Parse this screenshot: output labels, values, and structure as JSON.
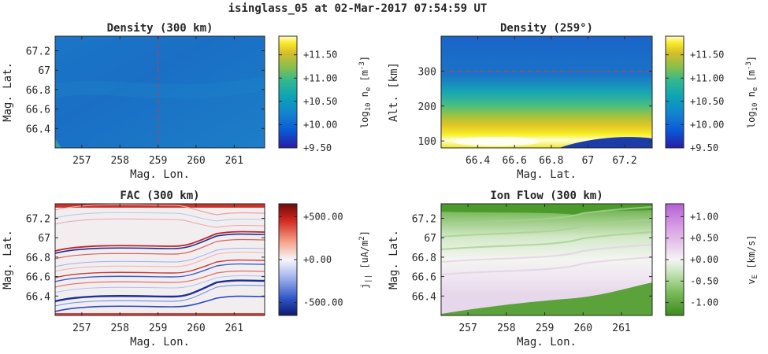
{
  "figure_title": "isinglass_05 at 02-Mar-2017 07:54:59 UT",
  "chart_data": [
    {
      "type": "heatmap",
      "title": "Density (300 km)",
      "xlabel": "Mag. Lon.",
      "ylabel": "Mag. Lat.",
      "xticks": [
        "257",
        "258",
        "259",
        "260",
        "261"
      ],
      "yticks": [
        "66.4",
        "66.6",
        "66.8",
        "67",
        "67.2"
      ],
      "xlim": [
        256.3,
        261.8
      ],
      "ylim": [
        66.2,
        67.35
      ],
      "cut_line_x": 259,
      "colorbar": {
        "label_base": "log",
        "label_sub": "10",
        "label_mid": " n",
        "label_sub2": "e",
        "label_unit": " [m",
        "label_sup": "-3",
        "label_end": "]",
        "ticks": [
          "+9.50",
          "+10.00",
          "+10.50",
          "+11.00",
          "+11.50"
        ],
        "tick_values": [
          9.5,
          10.0,
          10.5,
          11.0,
          11.5
        ],
        "range": [
          9.5,
          11.9
        ],
        "colormap": "parula"
      }
    },
    {
      "type": "heatmap",
      "title": "Density (259°)",
      "xlabel": "Mag. Lat.",
      "ylabel": "Alt. [km]",
      "xticks": [
        "66.4",
        "66.6",
        "66.8",
        "67",
        "67.2"
      ],
      "yticks": [
        "100",
        "200",
        "300"
      ],
      "xlim": [
        66.2,
        67.35
      ],
      "ylim": [
        80,
        400
      ],
      "cut_line_y": 300,
      "colorbar": {
        "label_base": "log",
        "label_sub": "10",
        "label_mid": " n",
        "label_sub2": "e",
        "label_unit": " [m",
        "label_sup": "-3",
        "label_end": "]",
        "ticks": [
          "+9.50",
          "+10.00",
          "+10.50",
          "+11.00",
          "+11.50"
        ],
        "tick_values": [
          9.5,
          10.0,
          10.5,
          11.0,
          11.5
        ],
        "range": [
          9.5,
          11.9
        ],
        "colormap": "parula"
      }
    },
    {
      "type": "heatmap",
      "title": "FAC (300 km)",
      "xlabel": "Mag. Lon.",
      "ylabel": "Mag. Lat.",
      "xticks": [
        "257",
        "258",
        "259",
        "260",
        "261"
      ],
      "yticks": [
        "66.4",
        "66.6",
        "66.8",
        "67",
        "67.2"
      ],
      "xlim": [
        256.3,
        261.8
      ],
      "ylim": [
        66.2,
        67.35
      ],
      "colorbar": {
        "label_base": "j",
        "label_sub": "||",
        "label_mid": "",
        "label_sub2": "",
        "label_unit": " [uA/m",
        "label_sup": "2",
        "label_end": "]",
        "ticks": [
          "-500.00",
          "+0.00",
          "+500.00"
        ],
        "tick_values": [
          -500,
          0,
          500
        ],
        "range": [
          -650,
          650
        ],
        "colormap": "blue-white-red"
      }
    },
    {
      "type": "heatmap",
      "title": "Ion Flow (300 km)",
      "xlabel": "Mag. Lon.",
      "ylabel": "Mag. Lat.",
      "xticks": [
        "257",
        "258",
        "259",
        "260",
        "261"
      ],
      "yticks": [
        "66.4",
        "66.6",
        "66.8",
        "67",
        "67.2"
      ],
      "xlim": [
        256.3,
        261.8
      ],
      "ylim": [
        66.2,
        67.35
      ],
      "colorbar": {
        "label_base": "v",
        "label_sub": "E",
        "label_mid": "",
        "label_sub2": "",
        "label_unit": " [km/s]",
        "label_sup": "",
        "label_end": "",
        "ticks": [
          "-1.00",
          "-0.50",
          "+0.00",
          "+0.50",
          "+1.00"
        ],
        "tick_values": [
          -1.0,
          -0.5,
          0.0,
          0.5,
          1.0
        ],
        "range": [
          -1.3,
          1.3
        ],
        "colormap": "green-white-purple"
      }
    }
  ]
}
